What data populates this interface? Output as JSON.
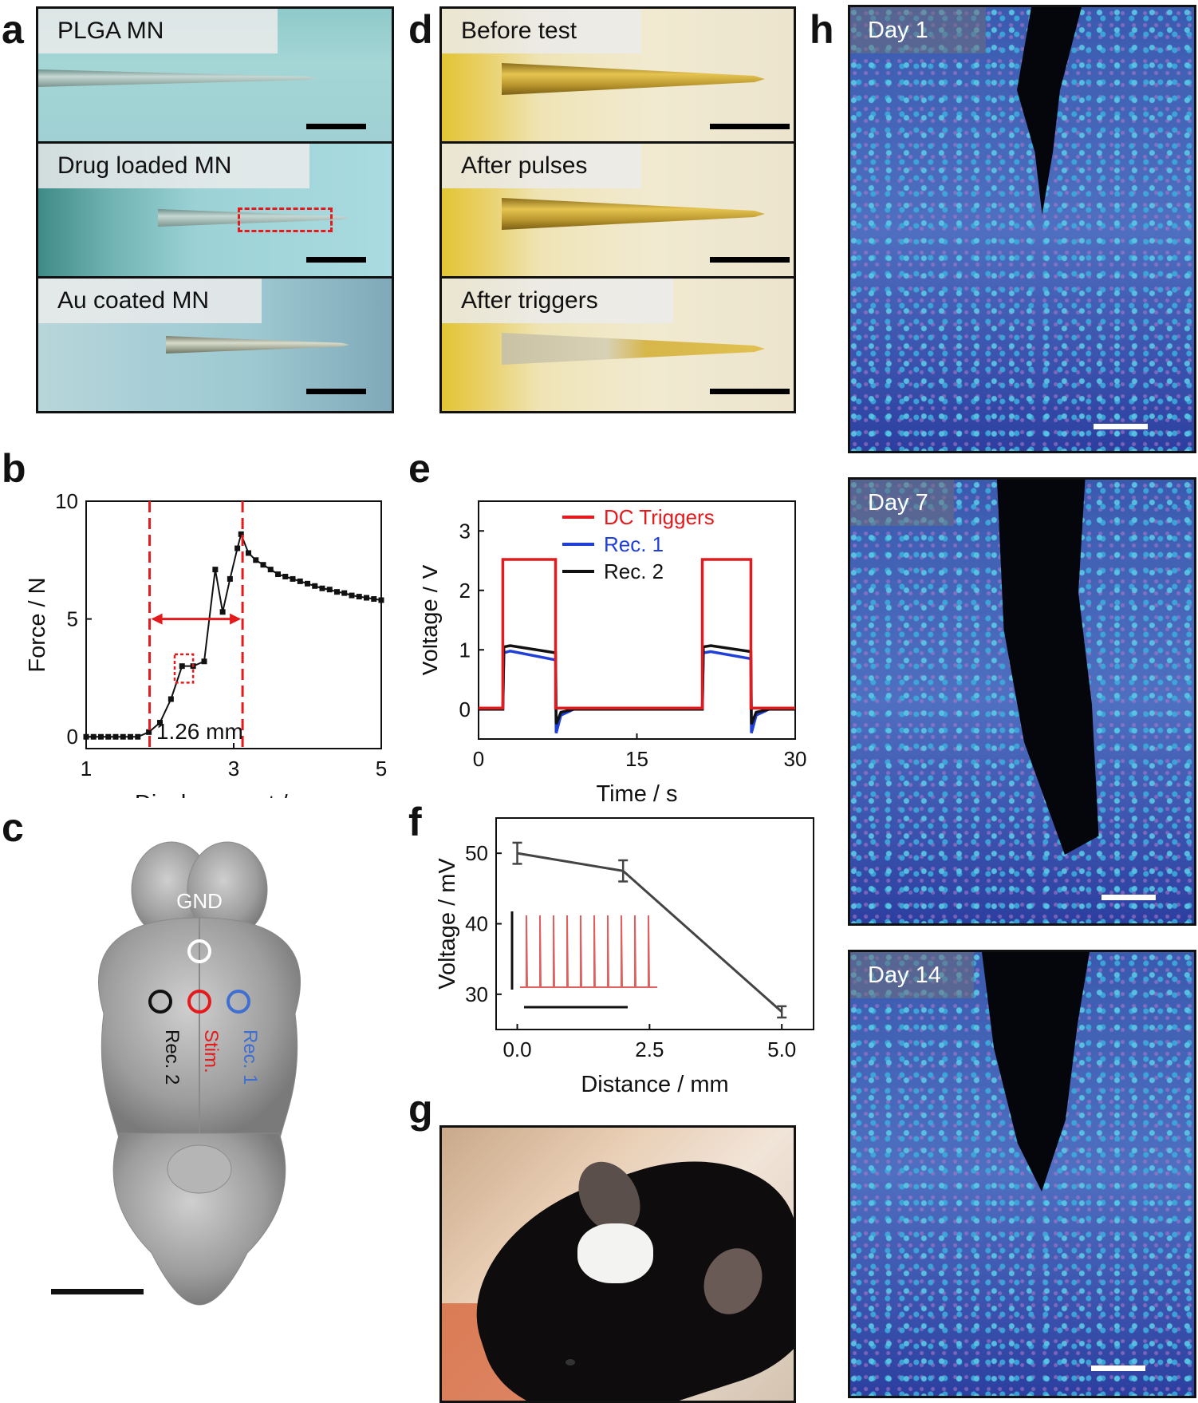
{
  "panel_labels": {
    "a": "a",
    "b": "b",
    "c": "c",
    "d": "d",
    "e": "e",
    "f": "f",
    "g": "g",
    "h": "h"
  },
  "panel_a": {
    "captions": [
      "PLGA MN",
      "Drug loaded MN",
      "Au coated MN"
    ]
  },
  "panel_d": {
    "captions": [
      "Before test",
      "After pulses",
      "After triggers"
    ]
  },
  "panel_c": {
    "labels": {
      "gnd": "GND",
      "rec2": "Rec. 2",
      "stim": "Stim.",
      "rec1": "Rec. 1"
    },
    "colors": {
      "gnd": "#ffffff",
      "rec2": "#111111",
      "stim": "#e41a1c",
      "rec1": "#3f6fd0"
    }
  },
  "panel_h": {
    "captions": [
      "Day 1",
      "Day 7",
      "Day 14"
    ]
  },
  "chart_data": [
    {
      "panel": "b",
      "type": "line",
      "xlabel": "Displacement / mm",
      "ylabel": "Force / N",
      "xlim": [
        1,
        5
      ],
      "ylim": [
        -0.5,
        10
      ],
      "xticks": [
        1,
        3,
        5
      ],
      "yticks": [
        0,
        5,
        10
      ],
      "x": [
        1.0,
        1.1,
        1.2,
        1.3,
        1.4,
        1.5,
        1.6,
        1.7,
        1.85,
        2.0,
        2.15,
        2.3,
        2.45,
        2.6,
        2.75,
        2.85,
        2.95,
        3.05,
        3.1,
        3.2,
        3.3,
        3.4,
        3.5,
        3.6,
        3.7,
        3.8,
        3.9,
        4.0,
        4.1,
        4.2,
        4.3,
        4.4,
        4.5,
        4.6,
        4.7,
        4.8,
        4.9,
        5.0
      ],
      "y": [
        0,
        0,
        0,
        0,
        0,
        0,
        0,
        0,
        0.2,
        0.6,
        1.6,
        3.0,
        3.0,
        3.2,
        7.1,
        5.3,
        6.7,
        8.0,
        8.6,
        7.8,
        7.5,
        7.3,
        7.1,
        6.9,
        6.8,
        6.7,
        6.6,
        6.5,
        6.4,
        6.3,
        6.25,
        6.15,
        6.1,
        6.0,
        5.95,
        5.9,
        5.85,
        5.8
      ],
      "series_color": "#111111",
      "vlines": [
        1.86,
        3.12
      ],
      "annotation": "1.26 mm",
      "accent": "#e41a1c"
    },
    {
      "panel": "e",
      "type": "line",
      "xlabel": "Time / s",
      "ylabel": "Voltage / V",
      "xlim": [
        0,
        30
      ],
      "ylim": [
        -0.5,
        3.5
      ],
      "xticks": [
        0,
        15,
        30
      ],
      "yticks": [
        0,
        1,
        2,
        3
      ],
      "series": [
        {
          "name": "DC Triggers",
          "color": "#e41a1c",
          "x": [
            0,
            2.3,
            2.3,
            7.3,
            7.3,
            21.2,
            21.2,
            25.8,
            25.8,
            30
          ],
          "y": [
            0.02,
            0.02,
            2.52,
            2.52,
            0.02,
            0.02,
            2.52,
            2.52,
            0.02,
            0.02
          ]
        },
        {
          "name": "Rec. 1",
          "color": "#1f3fd8",
          "x": [
            0,
            2.3,
            2.4,
            3.0,
            7.3,
            7.35,
            7.8,
            9,
            21.2,
            21.3,
            22,
            25.8,
            25.85,
            26.3,
            27.5,
            30
          ],
          "y": [
            0,
            0,
            0.95,
            0.98,
            0.83,
            -0.4,
            -0.1,
            0,
            0,
            0.95,
            0.97,
            0.85,
            -0.4,
            -0.1,
            0,
            0
          ]
        },
        {
          "name": "Rec. 2",
          "color": "#111111",
          "x": [
            0,
            2.3,
            2.4,
            3.0,
            7.3,
            7.35,
            7.8,
            9,
            21.2,
            21.3,
            22,
            25.8,
            25.85,
            26.3,
            27.5,
            30
          ],
          "y": [
            0,
            0,
            1.05,
            1.07,
            0.95,
            -0.25,
            -0.05,
            0,
            0,
            1.05,
            1.07,
            0.97,
            -0.25,
            -0.05,
            0,
            0
          ]
        }
      ],
      "legend_position": "top-right"
    },
    {
      "panel": "f",
      "type": "line",
      "xlabel": "Distance / mm",
      "ylabel": "Voltage / mV",
      "xlim": [
        -0.4,
        5.6
      ],
      "ylim": [
        25,
        55
      ],
      "xticks": [
        0.0,
        2.5,
        5.0
      ],
      "xtick_labels": [
        "0.0",
        "2.5",
        "5.0"
      ],
      "yticks": [
        30,
        40,
        50
      ],
      "x": [
        0,
        2,
        5
      ],
      "y": [
        50.0,
        47.5,
        27.5
      ],
      "err": [
        1.5,
        1.5,
        0.8
      ],
      "series_color": "#444444",
      "inset": {
        "spikes": 10,
        "color": "#e06060"
      }
    }
  ]
}
